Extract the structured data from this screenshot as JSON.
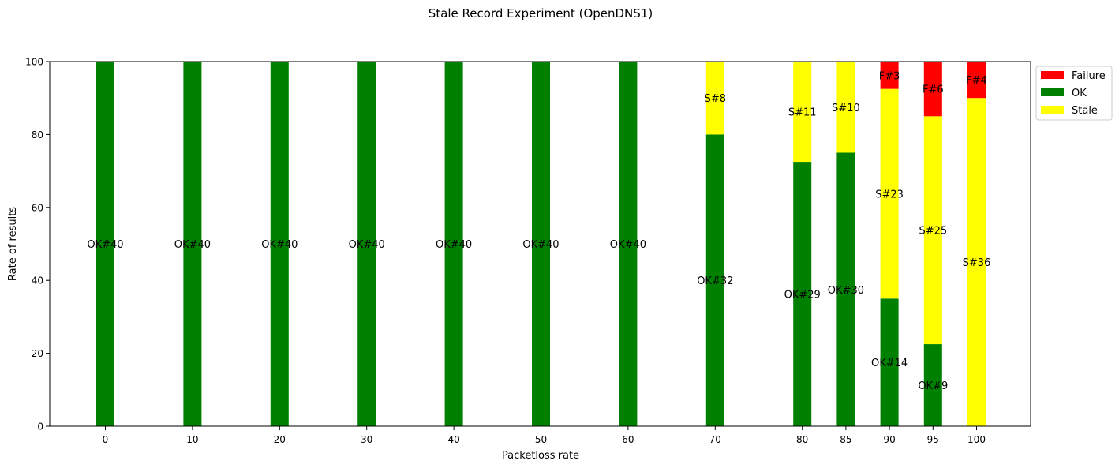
{
  "chart_data": {
    "type": "bar",
    "stacked": true,
    "title": "Stale Record Experiment (OpenDNS1)",
    "xlabel": "Packetloss rate",
    "ylabel": "Rate of results",
    "ylim": [
      0,
      100
    ],
    "y_ticks": [
      0,
      20,
      40,
      60,
      80,
      100
    ],
    "categories": [
      "0",
      "10",
      "20",
      "30",
      "40",
      "50",
      "60",
      "70",
      "80",
      "85",
      "90",
      "95",
      "100"
    ],
    "x_values": [
      0,
      10,
      20,
      30,
      40,
      50,
      60,
      70,
      80,
      85,
      90,
      95,
      100
    ],
    "series": [
      {
        "name": "OK",
        "color": "#008000",
        "values": [
          100,
          100,
          100,
          100,
          100,
          100,
          100,
          80,
          72.5,
          75,
          35,
          22.5,
          0
        ],
        "labels": [
          "OK#40",
          "OK#40",
          "OK#40",
          "OK#40",
          "OK#40",
          "OK#40",
          "OK#40",
          "OK#32",
          "OK#29",
          "OK#30",
          "OK#14",
          "OK#9",
          ""
        ]
      },
      {
        "name": "Stale",
        "color": "#ffff00",
        "values": [
          0,
          0,
          0,
          0,
          0,
          0,
          0,
          20,
          27.5,
          25,
          57.5,
          62.5,
          90
        ],
        "labels": [
          "",
          "",
          "",
          "",
          "",
          "",
          "",
          "S#8",
          "S#11",
          "S#10",
          "S#23",
          "S#25",
          "S#36"
        ]
      },
      {
        "name": "Failure",
        "color": "#ff0000",
        "values": [
          0,
          0,
          0,
          0,
          0,
          0,
          0,
          0,
          0,
          0,
          7.5,
          15,
          10
        ],
        "labels": [
          "",
          "",
          "",
          "",
          "",
          "",
          "",
          "",
          "",
          "",
          "F#3",
          "F#6",
          "F#4"
        ]
      }
    ],
    "legend": {
      "placement": "outside-top-right",
      "order": [
        "Failure",
        "OK",
        "Stale"
      ]
    },
    "grid": false
  }
}
